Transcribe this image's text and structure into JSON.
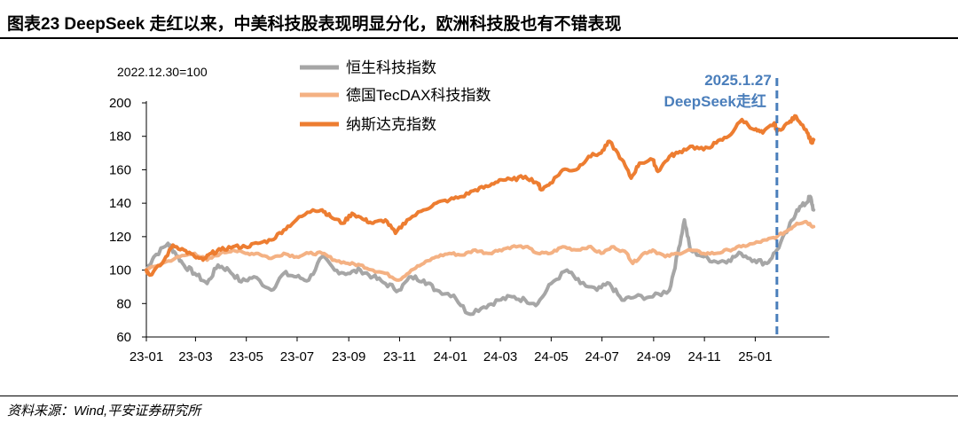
{
  "header": {
    "title": "图表23    DeepSeek 走红以来，中美科技股表现明显分化，欧洲科技股也有不错表现"
  },
  "footer": {
    "source": "资料来源：Wind,平安证券研究所"
  },
  "colors": {
    "hang_seng_tech": "#a6a6a6",
    "tecdax": "#f4b183",
    "nasdaq": "#ed7d31",
    "event_line": "#4a7ebb",
    "axis": "#000000"
  },
  "chart_data": {
    "type": "line",
    "base_note": "2022.12.30=100",
    "ylim": [
      60,
      200
    ],
    "yticks": [
      60,
      80,
      100,
      120,
      140,
      160,
      180,
      200
    ],
    "xlim": [
      "2023-01-01",
      "2025-03-31"
    ],
    "xticks": [
      {
        "date": "2023-01-01",
        "label": "23-01"
      },
      {
        "date": "2023-03-01",
        "label": "23-03"
      },
      {
        "date": "2023-05-01",
        "label": "23-05"
      },
      {
        "date": "2023-07-01",
        "label": "23-07"
      },
      {
        "date": "2023-09-01",
        "label": "23-09"
      },
      {
        "date": "2023-11-01",
        "label": "23-11"
      },
      {
        "date": "2024-01-01",
        "label": "24-01"
      },
      {
        "date": "2024-03-01",
        "label": "24-03"
      },
      {
        "date": "2024-05-01",
        "label": "24-05"
      },
      {
        "date": "2024-07-01",
        "label": "24-07"
      },
      {
        "date": "2024-09-01",
        "label": "24-09"
      },
      {
        "date": "2024-11-01",
        "label": "24-11"
      },
      {
        "date": "2025-01-01",
        "label": "25-01"
      }
    ],
    "legend_position": "top-center",
    "annotation": {
      "date": "2025-01-27",
      "line1": "2025.1.27",
      "line2": "DeepSeek走红"
    },
    "series": [
      {
        "name": "恒生科技指数",
        "color": "#a6a6a6",
        "points": [
          [
            "2023-01-01",
            100
          ],
          [
            "2023-01-10",
            108
          ],
          [
            "2023-01-27",
            116
          ],
          [
            "2023-02-05",
            110
          ],
          [
            "2023-02-15",
            103
          ],
          [
            "2023-02-28",
            98
          ],
          [
            "2023-03-15",
            92
          ],
          [
            "2023-03-28",
            103
          ],
          [
            "2023-04-10",
            100
          ],
          [
            "2023-04-25",
            93
          ],
          [
            "2023-05-10",
            96
          ],
          [
            "2023-05-31",
            88
          ],
          [
            "2023-06-15",
            98
          ],
          [
            "2023-06-30",
            96
          ],
          [
            "2023-07-15",
            94
          ],
          [
            "2023-07-31",
            108
          ],
          [
            "2023-08-15",
            100
          ],
          [
            "2023-08-31",
            98
          ],
          [
            "2023-09-15",
            100
          ],
          [
            "2023-09-30",
            96
          ],
          [
            "2023-10-15",
            92
          ],
          [
            "2023-10-31",
            88
          ],
          [
            "2023-11-15",
            96
          ],
          [
            "2023-11-30",
            94
          ],
          [
            "2023-12-15",
            88
          ],
          [
            "2024-01-05",
            85
          ],
          [
            "2024-01-22",
            74
          ],
          [
            "2024-02-10",
            78
          ],
          [
            "2024-02-28",
            82
          ],
          [
            "2024-03-15",
            84
          ],
          [
            "2024-03-31",
            82
          ],
          [
            "2024-04-15",
            80
          ],
          [
            "2024-05-01",
            92
          ],
          [
            "2024-05-20",
            100
          ],
          [
            "2024-06-05",
            92
          ],
          [
            "2024-06-25",
            88
          ],
          [
            "2024-07-10",
            92
          ],
          [
            "2024-07-25",
            82
          ],
          [
            "2024-08-10",
            84
          ],
          [
            "2024-08-31",
            84
          ],
          [
            "2024-09-20",
            88
          ],
          [
            "2024-09-30",
            110
          ],
          [
            "2024-10-08",
            130
          ],
          [
            "2024-10-15",
            112
          ],
          [
            "2024-10-31",
            108
          ],
          [
            "2024-11-15",
            105
          ],
          [
            "2024-11-30",
            106
          ],
          [
            "2024-12-15",
            110
          ],
          [
            "2024-12-31",
            106
          ],
          [
            "2025-01-15",
            104
          ],
          [
            "2025-01-27",
            112
          ],
          [
            "2025-02-10",
            125
          ],
          [
            "2025-02-20",
            136
          ],
          [
            "2025-03-03",
            140
          ],
          [
            "2025-03-08",
            144
          ],
          [
            "2025-03-12",
            136
          ]
        ]
      },
      {
        "name": "德国TecDAX科技指数",
        "color": "#f4b183",
        "points": [
          [
            "2023-01-01",
            100
          ],
          [
            "2023-01-20",
            104
          ],
          [
            "2023-02-10",
            108
          ],
          [
            "2023-02-28",
            110
          ],
          [
            "2023-03-15",
            106
          ],
          [
            "2023-03-31",
            110
          ],
          [
            "2023-04-15",
            112
          ],
          [
            "2023-04-30",
            110
          ],
          [
            "2023-05-15",
            110
          ],
          [
            "2023-05-31",
            107
          ],
          [
            "2023-06-15",
            110
          ],
          [
            "2023-06-30",
            108
          ],
          [
            "2023-07-15",
            110
          ],
          [
            "2023-07-31",
            110
          ],
          [
            "2023-08-15",
            106
          ],
          [
            "2023-08-31",
            104
          ],
          [
            "2023-09-15",
            103
          ],
          [
            "2023-09-30",
            100
          ],
          [
            "2023-10-15",
            98
          ],
          [
            "2023-10-31",
            94
          ],
          [
            "2023-11-15",
            100
          ],
          [
            "2023-11-30",
            104
          ],
          [
            "2023-12-15",
            108
          ],
          [
            "2023-12-31",
            110
          ],
          [
            "2024-01-15",
            109
          ],
          [
            "2024-01-31",
            112
          ],
          [
            "2024-02-15",
            110
          ],
          [
            "2024-02-29",
            112
          ],
          [
            "2024-03-15",
            114
          ],
          [
            "2024-03-31",
            114
          ],
          [
            "2024-04-15",
            110
          ],
          [
            "2024-04-30",
            110
          ],
          [
            "2024-05-15",
            114
          ],
          [
            "2024-05-31",
            112
          ],
          [
            "2024-06-15",
            114
          ],
          [
            "2024-06-30",
            110
          ],
          [
            "2024-07-15",
            114
          ],
          [
            "2024-07-31",
            110
          ],
          [
            "2024-08-07",
            104
          ],
          [
            "2024-08-20",
            110
          ],
          [
            "2024-08-31",
            112
          ],
          [
            "2024-09-15",
            108
          ],
          [
            "2024-09-30",
            110
          ],
          [
            "2024-10-15",
            112
          ],
          [
            "2024-10-31",
            110
          ],
          [
            "2024-11-15",
            110
          ],
          [
            "2024-11-30",
            112
          ],
          [
            "2024-12-15",
            114
          ],
          [
            "2024-12-31",
            116
          ],
          [
            "2025-01-15",
            118
          ],
          [
            "2025-01-27",
            120
          ],
          [
            "2025-02-10",
            124
          ],
          [
            "2025-02-20",
            128
          ],
          [
            "2025-03-03",
            129
          ],
          [
            "2025-03-12",
            126
          ]
        ]
      },
      {
        "name": "纳斯达克指数",
        "color": "#ed7d31",
        "points": [
          [
            "2023-01-01",
            100
          ],
          [
            "2023-01-05",
            97
          ],
          [
            "2023-01-20",
            104
          ],
          [
            "2023-02-02",
            115
          ],
          [
            "2023-02-15",
            112
          ],
          [
            "2023-02-28",
            108
          ],
          [
            "2023-03-10",
            106
          ],
          [
            "2023-03-20",
            110
          ],
          [
            "2023-03-31",
            112
          ],
          [
            "2023-04-15",
            114
          ],
          [
            "2023-04-30",
            114
          ],
          [
            "2023-05-15",
            116
          ],
          [
            "2023-05-31",
            118
          ],
          [
            "2023-06-15",
            124
          ],
          [
            "2023-06-30",
            130
          ],
          [
            "2023-07-20",
            136
          ],
          [
            "2023-07-31",
            136
          ],
          [
            "2023-08-10",
            132
          ],
          [
            "2023-08-25",
            128
          ],
          [
            "2023-09-05",
            134
          ],
          [
            "2023-09-20",
            130
          ],
          [
            "2023-09-30",
            128
          ],
          [
            "2023-10-15",
            130
          ],
          [
            "2023-10-27",
            122
          ],
          [
            "2023-11-10",
            130
          ],
          [
            "2023-11-30",
            136
          ],
          [
            "2023-12-15",
            140
          ],
          [
            "2023-12-31",
            142
          ],
          [
            "2024-01-15",
            144
          ],
          [
            "2024-01-31",
            148
          ],
          [
            "2024-02-15",
            150
          ],
          [
            "2024-02-29",
            154
          ],
          [
            "2024-03-15",
            154
          ],
          [
            "2024-03-31",
            156
          ],
          [
            "2024-04-15",
            152
          ],
          [
            "2024-04-19",
            148
          ],
          [
            "2024-04-30",
            152
          ],
          [
            "2024-05-15",
            160
          ],
          [
            "2024-05-31",
            160
          ],
          [
            "2024-06-15",
            168
          ],
          [
            "2024-06-30",
            170
          ],
          [
            "2024-07-10",
            177
          ],
          [
            "2024-07-25",
            166
          ],
          [
            "2024-08-05",
            155
          ],
          [
            "2024-08-15",
            164
          ],
          [
            "2024-08-31",
            166
          ],
          [
            "2024-09-06",
            159
          ],
          [
            "2024-09-20",
            168
          ],
          [
            "2024-09-30",
            170
          ],
          [
            "2024-10-15",
            174
          ],
          [
            "2024-10-31",
            172
          ],
          [
            "2024-11-15",
            176
          ],
          [
            "2024-11-30",
            180
          ],
          [
            "2024-12-16",
            190
          ],
          [
            "2024-12-31",
            184
          ],
          [
            "2025-01-10",
            182
          ],
          [
            "2025-01-24",
            188
          ],
          [
            "2025-01-27",
            183
          ],
          [
            "2025-02-10",
            188
          ],
          [
            "2025-02-19",
            192
          ],
          [
            "2025-03-03",
            184
          ],
          [
            "2025-03-10",
            176
          ],
          [
            "2025-03-12",
            178
          ]
        ]
      }
    ]
  }
}
